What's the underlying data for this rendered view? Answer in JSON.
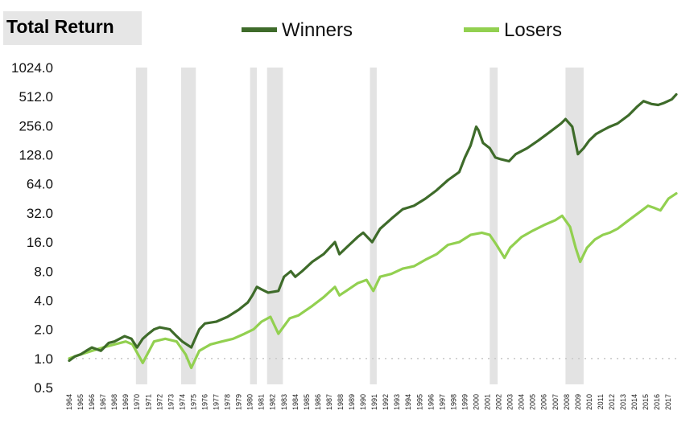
{
  "chart_data": {
    "type": "line",
    "title": "Total Return",
    "yscale": "log2",
    "ylim": [
      0.5,
      1024
    ],
    "yticks": [
      "1024.0",
      "512.0",
      "256.0",
      "128.0",
      "64.0",
      "32.0",
      "16.0",
      "8.0",
      "4.0",
      "2.0",
      "1.0",
      "0.5"
    ],
    "xlim": [
      1964,
      2017.7
    ],
    "xticks": [
      "1964",
      "1965",
      "1966",
      "1967",
      "1968",
      "1969",
      "1970",
      "1971",
      "1972",
      "1973",
      "1974",
      "1975",
      "1976",
      "1977",
      "1978",
      "1979",
      "1980",
      "1981",
      "1982",
      "1983",
      "1984",
      "1985",
      "1986",
      "1987",
      "1988",
      "1989",
      "1990",
      "1991",
      "1992",
      "1993",
      "1994",
      "1995",
      "1996",
      "1997",
      "1998",
      "1999",
      "2000",
      "2001",
      "2002",
      "2003",
      "2004",
      "2005",
      "2006",
      "2007",
      "2008",
      "2009",
      "2010",
      "2011",
      "2012",
      "2013",
      "2014",
      "2015",
      "2016",
      "2017"
    ],
    "legend_position": "top-center",
    "recessions": [
      [
        1969.9,
        1970.9
      ],
      [
        1973.9,
        1975.2
      ],
      [
        1980.0,
        1980.6
      ],
      [
        1981.5,
        1982.9
      ],
      [
        1990.6,
        1991.2
      ],
      [
        2001.2,
        2001.9
      ],
      [
        2007.9,
        2009.5
      ]
    ],
    "series": [
      {
        "name": "Winners",
        "color": "#3e6b2a",
        "x": [
          1964.0,
          1964.5,
          1965.0,
          1965.5,
          1966.0,
          1966.8,
          1967.5,
          1968.0,
          1968.9,
          1969.5,
          1970.0,
          1970.5,
          1971.0,
          1971.5,
          1972.0,
          1972.9,
          1973.5,
          1974.0,
          1974.8,
          1975.5,
          1976.0,
          1977.0,
          1978.0,
          1979.0,
          1979.8,
          1980.2,
          1980.6,
          1981.0,
          1981.6,
          1982.5,
          1983.0,
          1983.6,
          1984.0,
          1984.6,
          1985.5,
          1986.5,
          1987.5,
          1987.9,
          1988.5,
          1989.5,
          1990.0,
          1990.8,
          1991.5,
          1992.5,
          1993.5,
          1994.5,
          1995.5,
          1996.5,
          1997.5,
          1998.5,
          1999.0,
          1999.5,
          2000.0,
          2000.2,
          2000.6,
          2001.2,
          2001.7,
          2002.2,
          2002.9,
          2003.5,
          2004.5,
          2005.5,
          2006.5,
          2007.5,
          2007.9,
          2008.5,
          2009.0,
          2009.5,
          2010.0,
          2010.6,
          2011.2,
          2011.8,
          2012.5,
          2013.5,
          2014.2,
          2014.8,
          2015.5,
          2016.1,
          2016.6,
          2017.3,
          2017.7
        ],
        "values": [
          0.95,
          1.05,
          1.1,
          1.2,
          1.3,
          1.2,
          1.45,
          1.5,
          1.7,
          1.6,
          1.3,
          1.6,
          1.8,
          2.0,
          2.1,
          2.0,
          1.7,
          1.5,
          1.3,
          2.0,
          2.3,
          2.4,
          2.7,
          3.2,
          3.8,
          4.5,
          5.5,
          5.2,
          4.8,
          5.0,
          7.0,
          8.0,
          7.0,
          8.0,
          10.0,
          12.0,
          16.0,
          12.0,
          14.0,
          18.0,
          20.0,
          16.0,
          22.0,
          28.0,
          35.0,
          38.0,
          45.0,
          55.0,
          70.0,
          85.0,
          120.0,
          160.0,
          250.0,
          230.0,
          170.0,
          150.0,
          120.0,
          115.0,
          110.0,
          130.0,
          150.0,
          180.0,
          220.0,
          270.0,
          300.0,
          250.0,
          130.0,
          150.0,
          180.0,
          210.0,
          230.0,
          250.0,
          270.0,
          330.0,
          400.0,
          460.0,
          430.0,
          420.0,
          440.0,
          480.0,
          540.0
        ]
      },
      {
        "name": "Losers",
        "color": "#92d050",
        "x": [
          1964.0,
          1965.0,
          1966.0,
          1967.0,
          1968.0,
          1969.0,
          1969.6,
          1970.5,
          1971.5,
          1972.5,
          1973.5,
          1974.3,
          1974.8,
          1975.5,
          1976.5,
          1977.5,
          1978.5,
          1979.5,
          1980.3,
          1981.0,
          1981.8,
          1982.5,
          1983.5,
          1984.3,
          1985.5,
          1986.5,
          1987.5,
          1987.9,
          1988.5,
          1989.5,
          1990.3,
          1990.9,
          1991.5,
          1992.5,
          1993.5,
          1994.5,
          1995.5,
          1996.5,
          1997.5,
          1998.5,
          1999.5,
          2000.5,
          2001.2,
          2001.8,
          2002.5,
          2003.0,
          2004.0,
          2005.0,
          2006.0,
          2007.0,
          2007.6,
          2008.3,
          2008.8,
          2009.2,
          2009.8,
          2010.5,
          2011.2,
          2011.8,
          2012.5,
          2013.5,
          2014.5,
          2015.2,
          2015.8,
          2016.3,
          2017.0,
          2017.7
        ],
        "values": [
          1.0,
          1.1,
          1.2,
          1.3,
          1.4,
          1.5,
          1.4,
          0.9,
          1.5,
          1.6,
          1.5,
          1.1,
          0.8,
          1.2,
          1.4,
          1.5,
          1.6,
          1.8,
          2.0,
          2.4,
          2.7,
          1.8,
          2.6,
          2.8,
          3.5,
          4.3,
          5.5,
          4.5,
          5.0,
          6.0,
          6.5,
          5.0,
          7.0,
          7.5,
          8.5,
          9.0,
          10.5,
          12.0,
          15.0,
          16.0,
          19.0,
          20.0,
          19.0,
          15.0,
          11.0,
          14.0,
          18.0,
          21.0,
          24.0,
          27.0,
          30.0,
          23.0,
          14.0,
          10.0,
          14.0,
          17.0,
          19.0,
          20.0,
          22.0,
          27.0,
          33.0,
          38.0,
          36.0,
          34.0,
          45.0,
          51.0
        ]
      }
    ]
  }
}
